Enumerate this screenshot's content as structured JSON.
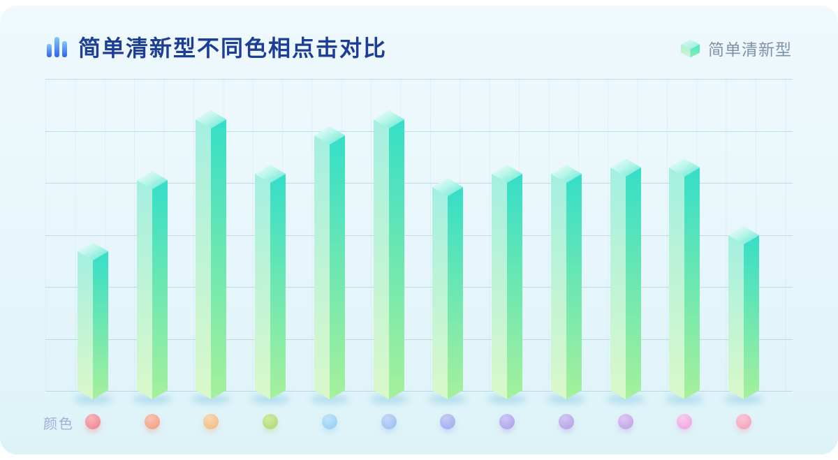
{
  "header": {
    "title": "简单清新型不同色相点击对比"
  },
  "legend": {
    "label": "简单清新型"
  },
  "x_axis": {
    "label": "颜色"
  },
  "theme": {
    "page_bg": "#FFFFFF",
    "card_bg_top": "#EFF9FD",
    "card_bg_bottom": "#DDF3F8",
    "title_color": "#1C3E94",
    "legend_text_color": "#7E91A9",
    "axis_label_color": "#9FB2D6",
    "gridline_color": "#C3D9E8",
    "title_icon_gradient": [
      "#83C7FB",
      "#2E63EB"
    ]
  },
  "chart_data": {
    "type": "bar",
    "style": "isometric-3d-columns",
    "title": "简单清新型不同色相点击对比",
    "xlabel": "颜色",
    "ylabel": "",
    "ylim": [
      0,
      100
    ],
    "grid": "horizontal-lines",
    "gridline_count": 7,
    "legend_position": "top-right",
    "legend_entries": [
      "简单清新型"
    ],
    "categories": [
      "red",
      "coral",
      "orange",
      "yellow-green",
      "sky-blue",
      "periwinkle",
      "blue-violet",
      "lavender",
      "purple",
      "lilac",
      "pink",
      "rose"
    ],
    "values": [
      49,
      71,
      90,
      73,
      85,
      90,
      69,
      73,
      73,
      75,
      75,
      54
    ],
    "bar_faces": {
      "top_light": "#E9FDF8",
      "top_dark": "#5EE7D1",
      "left_top": "#A4EFE1",
      "left_bottom": "#DAF8CA",
      "right_top": "#35DEC8",
      "right_bottom": "#A6F09B"
    },
    "dots": [
      {
        "name": "red",
        "base": "#F08C96",
        "highlight": "#F8B6BC"
      },
      {
        "name": "coral",
        "base": "#F2A48C",
        "highlight": "#F8C6B4"
      },
      {
        "name": "orange",
        "base": "#F2C08C",
        "highlight": "#F8D9B2"
      },
      {
        "name": "yellow-green",
        "base": "#B6DC80",
        "highlight": "#CFEAA4"
      },
      {
        "name": "sky-blue",
        "base": "#9CD2F4",
        "highlight": "#C2E4FA"
      },
      {
        "name": "periwinkle",
        "base": "#A4C2F2",
        "highlight": "#C4D8F8"
      },
      {
        "name": "blue-violet",
        "base": "#A8B0EE",
        "highlight": "#C6CCF6"
      },
      {
        "name": "lavender",
        "base": "#B2A8EC",
        "highlight": "#CCC6F4"
      },
      {
        "name": "purple",
        "base": "#BAA6EA",
        "highlight": "#D2C6F2"
      },
      {
        "name": "lilac",
        "base": "#C6A8EA",
        "highlight": "#DCC8F4"
      },
      {
        "name": "pink",
        "base": "#F2AAE4",
        "highlight": "#F8CCF0"
      },
      {
        "name": "rose",
        "base": "#F6A6BE",
        "highlight": "#FAC8D6"
      }
    ]
  }
}
